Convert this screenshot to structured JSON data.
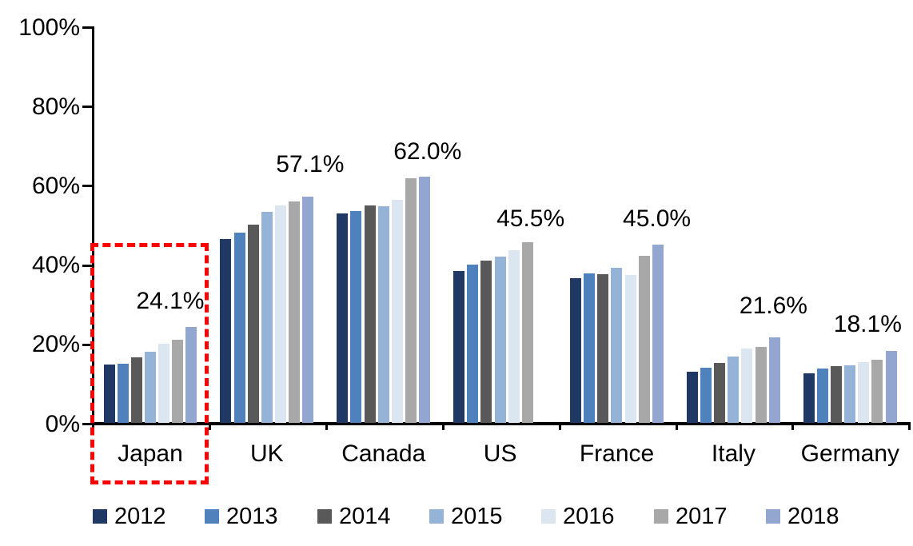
{
  "chart_data": {
    "type": "bar",
    "title": "",
    "categories": [
      "Japan",
      "UK",
      "Canada",
      "US",
      "France",
      "Italy",
      "Germany"
    ],
    "series": [
      {
        "name": "2012",
        "color": "#1F3864",
        "values": [
          14.8,
          46.4,
          52.9,
          38.3,
          36.4,
          13.0,
          12.4
        ]
      },
      {
        "name": "2013",
        "color": "#4F81BD",
        "values": [
          15.0,
          47.9,
          53.4,
          40.0,
          37.7,
          13.9,
          13.8
        ]
      },
      {
        "name": "2014",
        "color": "#595959",
        "values": [
          16.6,
          50.0,
          54.8,
          40.9,
          37.4,
          15.1,
          14.3
        ]
      },
      {
        "name": "2015",
        "color": "#95B3D7",
        "values": [
          17.9,
          53.2,
          54.6,
          42.0,
          39.2,
          16.7,
          14.6
        ]
      },
      {
        "name": "2016",
        "color": "#DCE6F1",
        "values": [
          20.0,
          54.8,
          56.2,
          43.5,
          37.3,
          18.8,
          15.3
        ]
      },
      {
        "name": "2017",
        "color": "#A8A8A8",
        "values": [
          21.0,
          55.8,
          61.7,
          45.5,
          42.2,
          19.1,
          15.9
        ]
      },
      {
        "name": "2018",
        "color": "#92A6CF",
        "values": [
          24.1,
          57.1,
          62.0,
          null,
          45.0,
          21.6,
          18.1
        ]
      }
    ],
    "data_labels": [
      "24.1%",
      "57.1%",
      "62.0%",
      "45.5%",
      "45.0%",
      "21.6%",
      "18.1%"
    ],
    "y_axis": {
      "tick_labels": [
        "0%",
        "20%",
        "40%",
        "60%",
        "80%",
        "100%"
      ],
      "tick_values": [
        0,
        20,
        40,
        60,
        80,
        100
      ],
      "ylim": [
        0,
        100
      ]
    },
    "legend": {
      "position": "bottom",
      "entries": [
        "2012",
        "2013",
        "2014",
        "2015",
        "2016",
        "2017",
        "2018"
      ]
    },
    "annotations": {
      "highlight": {
        "target_category": "Japan",
        "shape": "dashed-rectangle",
        "color": "#FF0000"
      }
    },
    "grid": "off"
  }
}
